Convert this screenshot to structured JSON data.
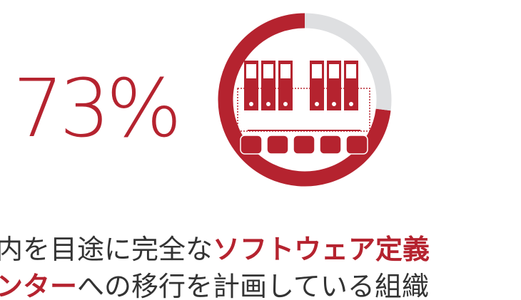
{
  "chart_data": {
    "type": "pie",
    "values": [
      73,
      27
    ],
    "value_labels": [
      "73%",
      null
    ],
    "colors": [
      "#b5232f",
      "#dedfe1"
    ],
    "caption": [
      [
        {
          "text": "内を目途に完全な",
          "bold": false
        },
        {
          "text": "ソフトウェア定義",
          "bold": true
        }
      ],
      [
        {
          "text": "ンター",
          "bold": true
        },
        {
          "text": "への移行を計画している組織",
          "bold": false
        }
      ]
    ]
  }
}
